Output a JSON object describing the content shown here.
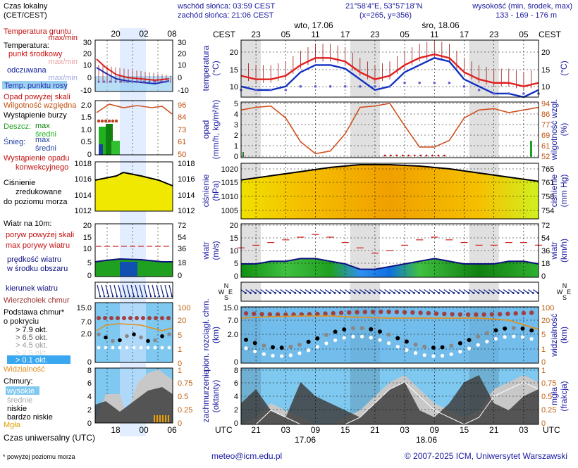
{
  "header": {
    "sunrise": "wschód słońca: 03:59 CEST",
    "sunset": "zachód słońca: 21:06 CEST",
    "coords": "21°58'4\"E, 53°57'18\"N",
    "grid": "(x=265,  y=356)",
    "elev_title": "wysokość (min, środek, max)",
    "elev_values": "133 - 169 - 176 m"
  },
  "footer": {
    "email": "meteo@icm.edu.pl",
    "copyright": "© 2007-2025 ICM, Uniwersytet Warszawski",
    "note": "* powyżej poziomu morza",
    "utc_caption": "Czas uniwersalny (UTC)"
  },
  "time_axis": {
    "tz_local": "CEST",
    "tz_utc": "UTC",
    "local_ticks": [
      "23",
      "05",
      "11",
      "17",
      "23",
      "05",
      "11",
      "17",
      "23",
      "05"
    ],
    "utc_ticks": [
      "21",
      "03",
      "09",
      "15",
      "21",
      "03",
      "09",
      "15",
      "21",
      "03"
    ],
    "days_top": [
      "wto, 17.06",
      "śro, 18.06"
    ],
    "days_bottom": [
      "17.06",
      "18.06"
    ]
  },
  "legend": {
    "time_title": "Czas lokalny",
    "time_sub": "(CET/CEST)",
    "time_ticks": [
      "20",
      "02",
      "08"
    ],
    "utc_ticks": [
      "18",
      "00",
      "06"
    ],
    "temp_ground": "Temperatura gruntu",
    "temp_ground_sub": "max/min",
    "temp_label": "Temperatura:",
    "temp_mid": "punkt środkowy",
    "temp_maxmin": "max/min",
    "temp_felt": "odczuwana",
    "temp_felt_maxmin": "max/min",
    "temp_dew": "Temp. punktu rosy",
    "precip_over": "Opad powyżej skali",
    "humidity": "Wilgotność względna",
    "storm": "Wystąpienie burzy",
    "rain": "Deszcz:",
    "rain_max": "max",
    "rain_mid": "średni",
    "snow": "Śnieg:",
    "snow_max": "max",
    "snow_mid": "średni",
    "precip_occur": "Wystąpienie opadu",
    "precip_conv": "konwekcyjnego",
    "pressure_l1": "Ciśnienie",
    "pressure_l2": "zredukowane",
    "pressure_l3": "do poziomu morza",
    "wind_title": "Wiatr na 10m:",
    "wind_gust_over": "poryw powyżej skali",
    "wind_gust": "max porywy wiatru",
    "wind_mean": "prędkość wiatru",
    "wind_mean2": "w środku obszaru",
    "wind_dir": "kierunek wiatru",
    "cloud_top": "Wierzchołek chmur",
    "cloud_base": "Podstawa chmur*",
    "cloud_cover": "o pokryciu",
    "okt_79": "> 7.9 okt.",
    "okt_65": "> 6.5 okt.",
    "okt_45": "> 4.5 okt.",
    "okt_25": "> 2.5 okt.",
    "okt_01": "> 0.1 okt.",
    "visibility": "Widzialność",
    "clouds_title": "Chmury:",
    "cl_high": "wysokie",
    "cl_mid": "średnie",
    "cl_low": "niskie",
    "cl_vlow": "bardzo niskie",
    "fog": "Mgła",
    "mini_ticks": {
      "temp": [
        "30",
        "20",
        "10",
        "0",
        "-10"
      ],
      "temp_r": [
        "30",
        "20",
        "10",
        "0",
        "-10"
      ],
      "precip": [
        "2.0",
        "1.5",
        "1.0",
        "0.5",
        "0"
      ],
      "hum": [
        "96",
        "84",
        "73",
        "61",
        "50"
      ],
      "press": [
        "1018",
        "1016",
        "1014",
        "1012"
      ],
      "press_r": [
        "1018",
        "1016",
        "1014",
        "1012"
      ],
      "wind": [
        "20",
        "15",
        "10",
        "5",
        "0"
      ],
      "wind_r": [
        "72",
        "54",
        "36",
        "18",
        "0"
      ],
      "cbase": [
        "15.0",
        "7.0",
        "2.0",
        "0"
      ],
      "vis": [
        "100",
        "20",
        "5",
        "1",
        "0"
      ],
      "cl": [
        "8",
        "6",
        "4",
        "2",
        "0"
      ],
      "fog": [
        "1",
        "0.75",
        "0.5",
        "0.25",
        "0"
      ]
    }
  },
  "panels": {
    "temp": {
      "ylabel": "temperatura",
      "yunit": "(°C)",
      "rlabel": "(°C)",
      "ticks": [
        "20",
        "15",
        "10"
      ]
    },
    "precip": {
      "ylabel": "opad",
      "yunit": "(mm/h, kg/m²/h)",
      "rlabel": "wilgotność wzgl.",
      "runit": "(%)",
      "ticks": [
        "5",
        "4",
        "3",
        "2",
        "1",
        "0"
      ],
      "rticks": [
        "94",
        "86",
        "77",
        "69",
        "61",
        "52"
      ]
    },
    "press": {
      "ylabel": "ciśnienie",
      "yunit": "(hPa)",
      "rlabel": "ciśnienie",
      "runit": "(mm Hg)",
      "ticks": [
        "1020",
        "1015",
        "1010",
        "1005"
      ],
      "rticks": [
        "765",
        "761",
        "758",
        "754"
      ]
    },
    "wind": {
      "ylabel": "wiatr",
      "yunit": "(m/s)",
      "rlabel": "wiatr",
      "runit": "(km/h)",
      "ticks": [
        "20",
        "15",
        "10",
        "5",
        "0"
      ],
      "rticks": [
        "72",
        "54",
        "36",
        "18",
        "0"
      ]
    },
    "dir": {
      "l1": "N",
      "l2": "W",
      "l3": "E",
      "l4": "S"
    },
    "cloud": {
      "ylabel": "pion. rozciągł. chm.",
      "yunit": "(km)",
      "rlabel": "widzialność",
      "runit": "(km)",
      "ticks": [
        "15.0",
        "7.0",
        "2.0",
        "0"
      ],
      "rticks": [
        "100",
        "20",
        "5",
        "1",
        "0"
      ]
    },
    "cover": {
      "ylabel": "zachmurzenie",
      "yunit": "(oktanty)",
      "rlabel": "mgła",
      "runit": "(frakcja)",
      "ticks": [
        "8",
        "6",
        "4",
        "2",
        "0"
      ],
      "rticks": [
        "1",
        "0.75",
        "0.5",
        "0.25",
        "0"
      ]
    }
  },
  "chart_data": [
    {
      "type": "line",
      "title": "temperatura",
      "x_hours": [
        0,
        3,
        6,
        9,
        12,
        15,
        18,
        21,
        24,
        27,
        30,
        33,
        36,
        39,
        42,
        45,
        48,
        51,
        54,
        57,
        60
      ],
      "series": [
        {
          "name": "punkt środkowy",
          "values": [
            14,
            13,
            13,
            14,
            17,
            19,
            19,
            18,
            15,
            13,
            14,
            17,
            19,
            20,
            19,
            15,
            13,
            12,
            12,
            11,
            12
          ]
        },
        {
          "name": "odczuwana",
          "values": [
            11,
            10,
            10,
            11,
            15,
            17,
            17,
            16,
            13,
            10,
            11,
            15,
            17,
            19,
            18,
            13,
            11,
            9,
            9,
            8,
            10
          ]
        },
        {
          "name": "Temp. punktu rosy",
          "values": [
            10,
            10,
            10,
            10,
            11,
            11,
            11,
            11,
            11,
            11,
            11,
            12,
            12,
            12,
            12,
            11,
            10,
            9,
            9,
            9,
            9
          ]
        }
      ],
      "ylim": [
        8,
        24
      ]
    },
    {
      "type": "line",
      "title": "wilgotność wzgl.",
      "x_hours": [
        0,
        3,
        6,
        9,
        12,
        15,
        18,
        21,
        24,
        27,
        30,
        33,
        36,
        39,
        42,
        45,
        48,
        51,
        54,
        57,
        60
      ],
      "values": [
        88,
        90,
        91,
        82,
        64,
        55,
        57,
        70,
        90,
        91,
        93,
        76,
        60,
        60,
        65,
        82,
        88,
        89,
        86,
        88,
        90
      ],
      "ylim": [
        52,
        94
      ]
    },
    {
      "type": "area",
      "title": "ciśnienie",
      "x_hours": [
        0,
        6,
        12,
        18,
        24,
        30,
        36,
        42,
        48,
        54,
        60
      ],
      "values": [
        1016,
        1017.5,
        1019,
        1020.5,
        1021.5,
        1021.5,
        1021,
        1020,
        1018.5,
        1017,
        1015.5
      ],
      "ylim": [
        1002,
        1022
      ]
    },
    {
      "type": "area",
      "title": "wiatr",
      "x_hours": [
        0,
        3,
        6,
        9,
        12,
        15,
        18,
        21,
        24,
        27,
        30,
        33,
        36,
        39,
        42,
        45,
        48,
        51,
        54,
        57,
        60
      ],
      "series": [
        {
          "name": "prędkość wiatru",
          "values": [
            5,
            5,
            6,
            6,
            7,
            7,
            6,
            5,
            3,
            3,
            4,
            5,
            6,
            7,
            6,
            5,
            5,
            5,
            6,
            6,
            5
          ]
        },
        {
          "name": "max porywy wiatru",
          "values": [
            11,
            12,
            13,
            14,
            15,
            16,
            15,
            13,
            11,
            9,
            10,
            12,
            14,
            15,
            14,
            13,
            12,
            12,
            13,
            13,
            12
          ]
        }
      ],
      "ylim": [
        0,
        20
      ]
    },
    {
      "type": "area",
      "title": "zachmurzenie",
      "x_hours": [
        0,
        3,
        6,
        9,
        12,
        15,
        18,
        21,
        24,
        27,
        30,
        33,
        36,
        39,
        42,
        45,
        48,
        51,
        54,
        57,
        60
      ],
      "series": [
        {
          "name": "niskie",
          "values": [
            3,
            5,
            2,
            1,
            6,
            4,
            3,
            2,
            1,
            3,
            5,
            6,
            2,
            1,
            3,
            6,
            7,
            3,
            2,
            4,
            5
          ]
        },
        {
          "name": "wysokie",
          "values": [
            0,
            1,
            3,
            2,
            1,
            0,
            0,
            1,
            2,
            4,
            6,
            7,
            5,
            3,
            2,
            1,
            2,
            5,
            6,
            7,
            6
          ]
        }
      ],
      "ylim": [
        0,
        8
      ]
    }
  ]
}
